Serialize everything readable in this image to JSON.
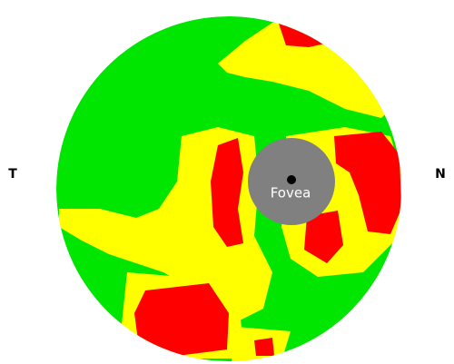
{
  "labels": {
    "left": "T",
    "right": "N",
    "fovea": "Fovea"
  }
}
